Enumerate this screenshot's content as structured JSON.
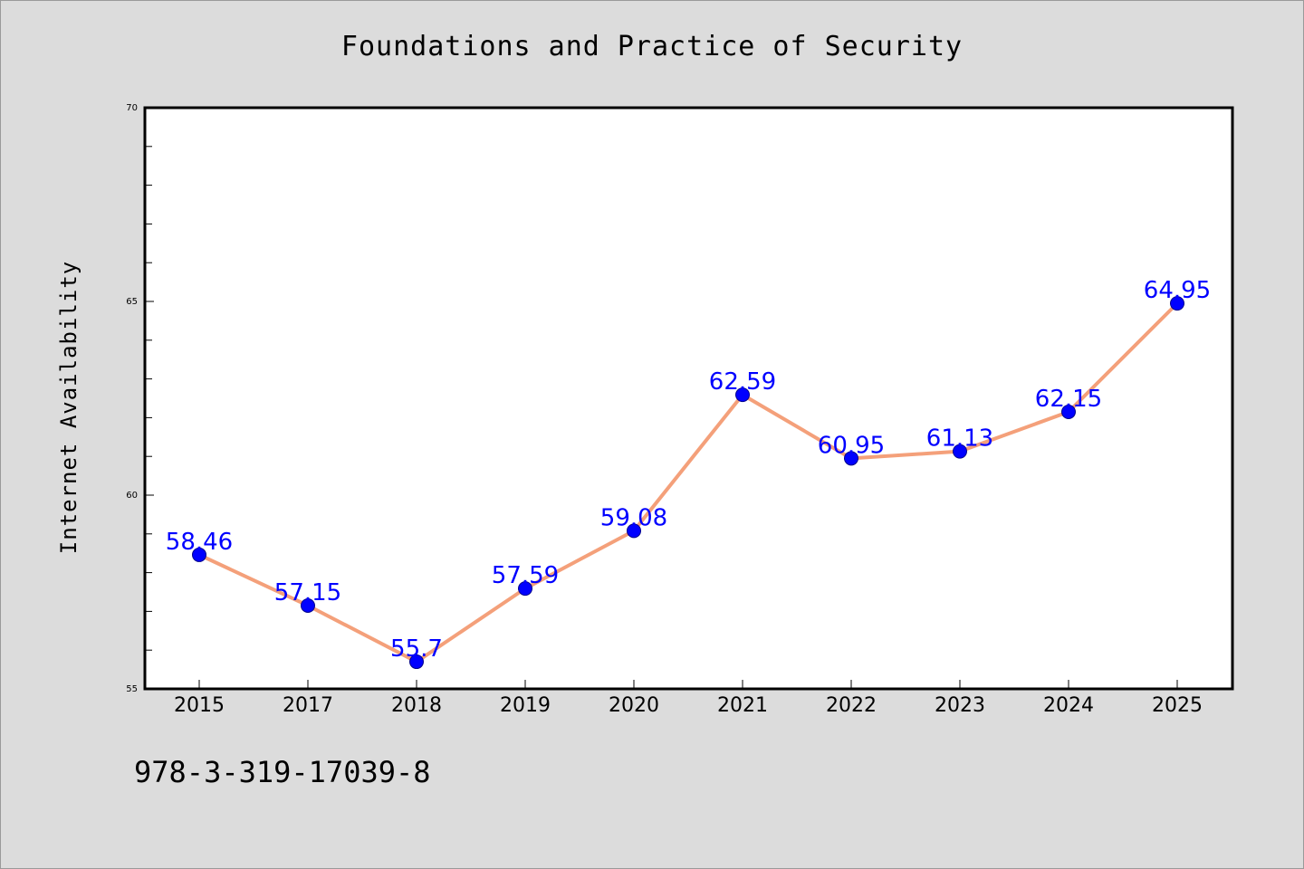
{
  "chart_data": {
    "type": "line",
    "title": "Foundations and Practice of Security",
    "xlabel": "",
    "ylabel": "Internet Availability",
    "categories": [
      "2015",
      "2017",
      "2018",
      "2019",
      "2020",
      "2021",
      "2022",
      "2023",
      "2024",
      "2025"
    ],
    "series": [
      {
        "values": [
          58.46,
          57.15,
          55.7,
          57.59,
          59.08,
          62.59,
          60.95,
          61.13,
          62.15,
          64.95
        ],
        "data_labels": [
          "58.46",
          "57.15",
          "55.7",
          "57.59",
          "59.08",
          "62.59",
          "60.95",
          "61.13",
          "62.15",
          "64.95"
        ]
      }
    ],
    "ylim": [
      55,
      70
    ],
    "yticks": [
      "55",
      "60",
      "65",
      "70"
    ],
    "grid": false,
    "colors": {
      "line": "#f4a07a",
      "marker": "#0000ff",
      "label": "#0000ff"
    }
  },
  "footer_text": "978-3-319-17039-8"
}
